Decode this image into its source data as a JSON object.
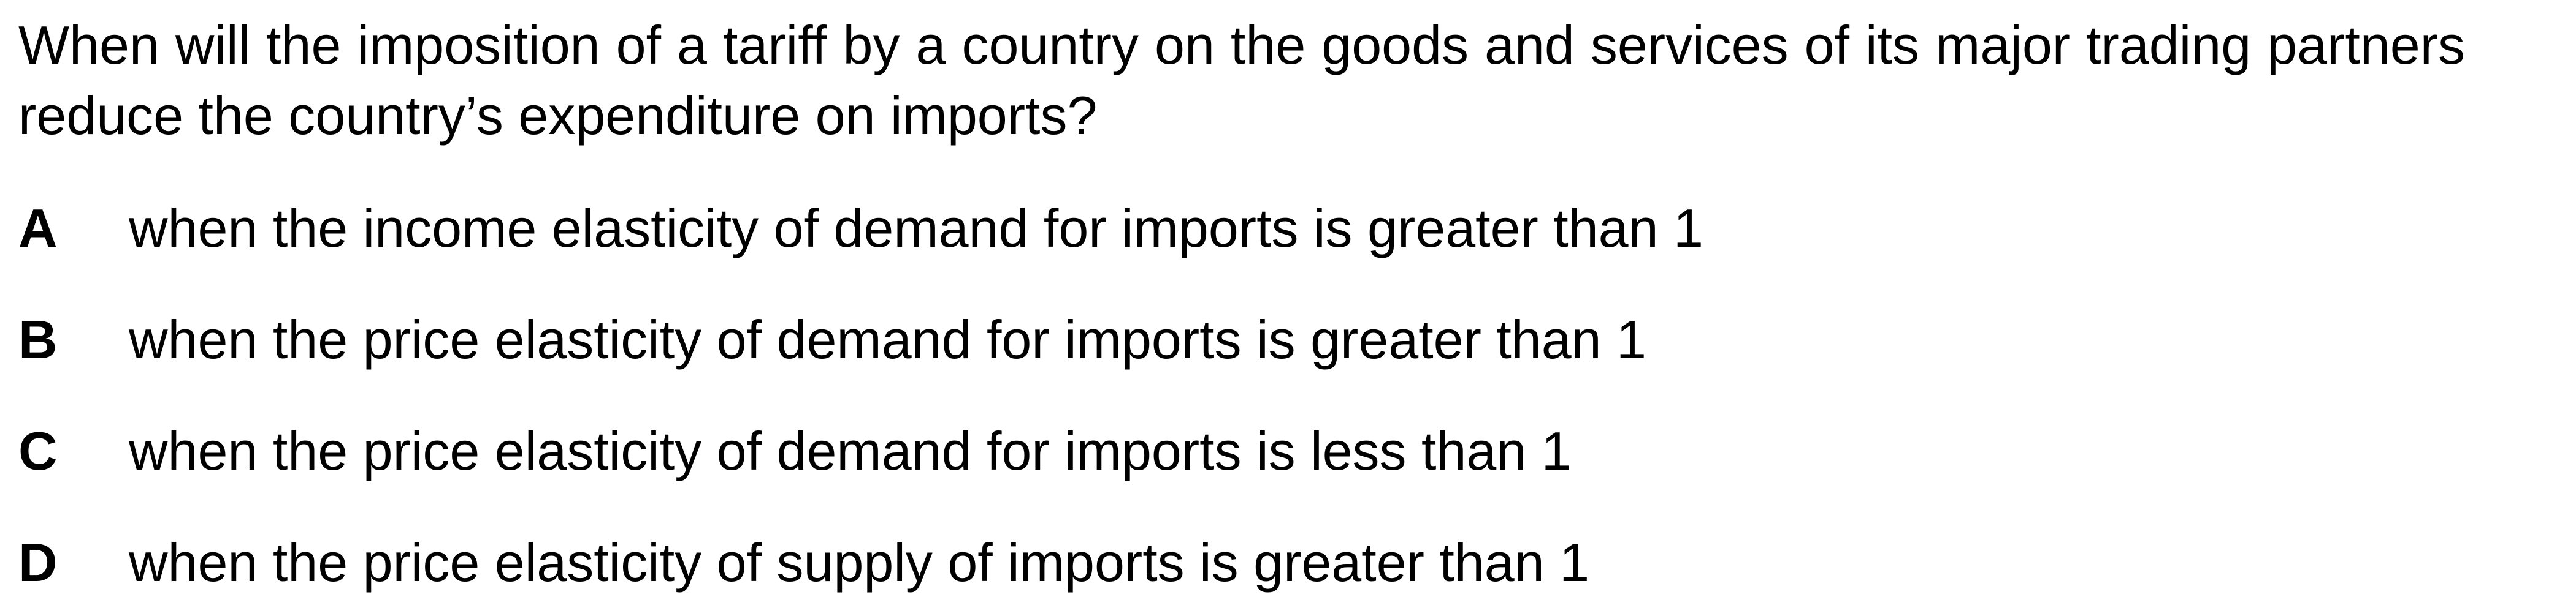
{
  "question": {
    "text": "When will the imposition of a tariff by a country on the goods and services of its major trading partners reduce the country’s expenditure on imports?"
  },
  "options": [
    {
      "letter": "A",
      "text": "when the income elasticity of demand for imports is greater than 1"
    },
    {
      "letter": "B",
      "text": "when the price elasticity of demand for imports is greater than 1"
    },
    {
      "letter": "C",
      "text": "when the price elasticity of demand for imports is less than 1"
    },
    {
      "letter": "D",
      "text": "when the price elasticity of supply of imports is greater than 1"
    }
  ]
}
